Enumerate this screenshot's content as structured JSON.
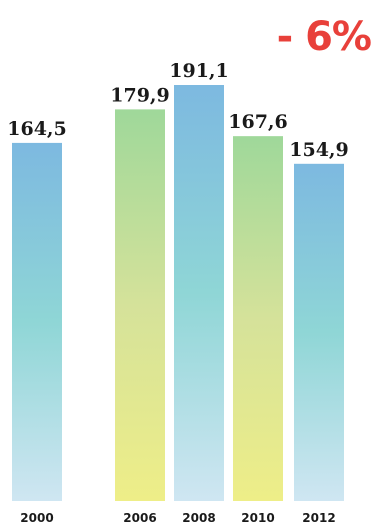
{
  "chart_data": {
    "type": "bar",
    "categories": [
      "2000",
      "2006",
      "2008",
      "2010",
      "2012"
    ],
    "values": [
      164.5,
      179.9,
      191.1,
      167.6,
      154.9
    ],
    "value_labels": [
      "164,5",
      "179,9",
      "191,1",
      "167,6",
      "154,9"
    ],
    "title": "",
    "xlabel": "",
    "ylabel": "",
    "ylim": [
      0,
      191.1
    ],
    "grid": false,
    "annotation": "- 6%",
    "annotation_color": "#e8403a",
    "bar_palettes": [
      "blue",
      "green",
      "blue",
      "green",
      "blue"
    ],
    "colors": {
      "blue": {
        "top": "#7db9e0",
        "mid": "#8fd6d6",
        "bottom": "#cfe6f2"
      },
      "green": {
        "top": "#9fd89a",
        "mid": "#d5e29a",
        "bottom": "#eeee88"
      }
    }
  }
}
